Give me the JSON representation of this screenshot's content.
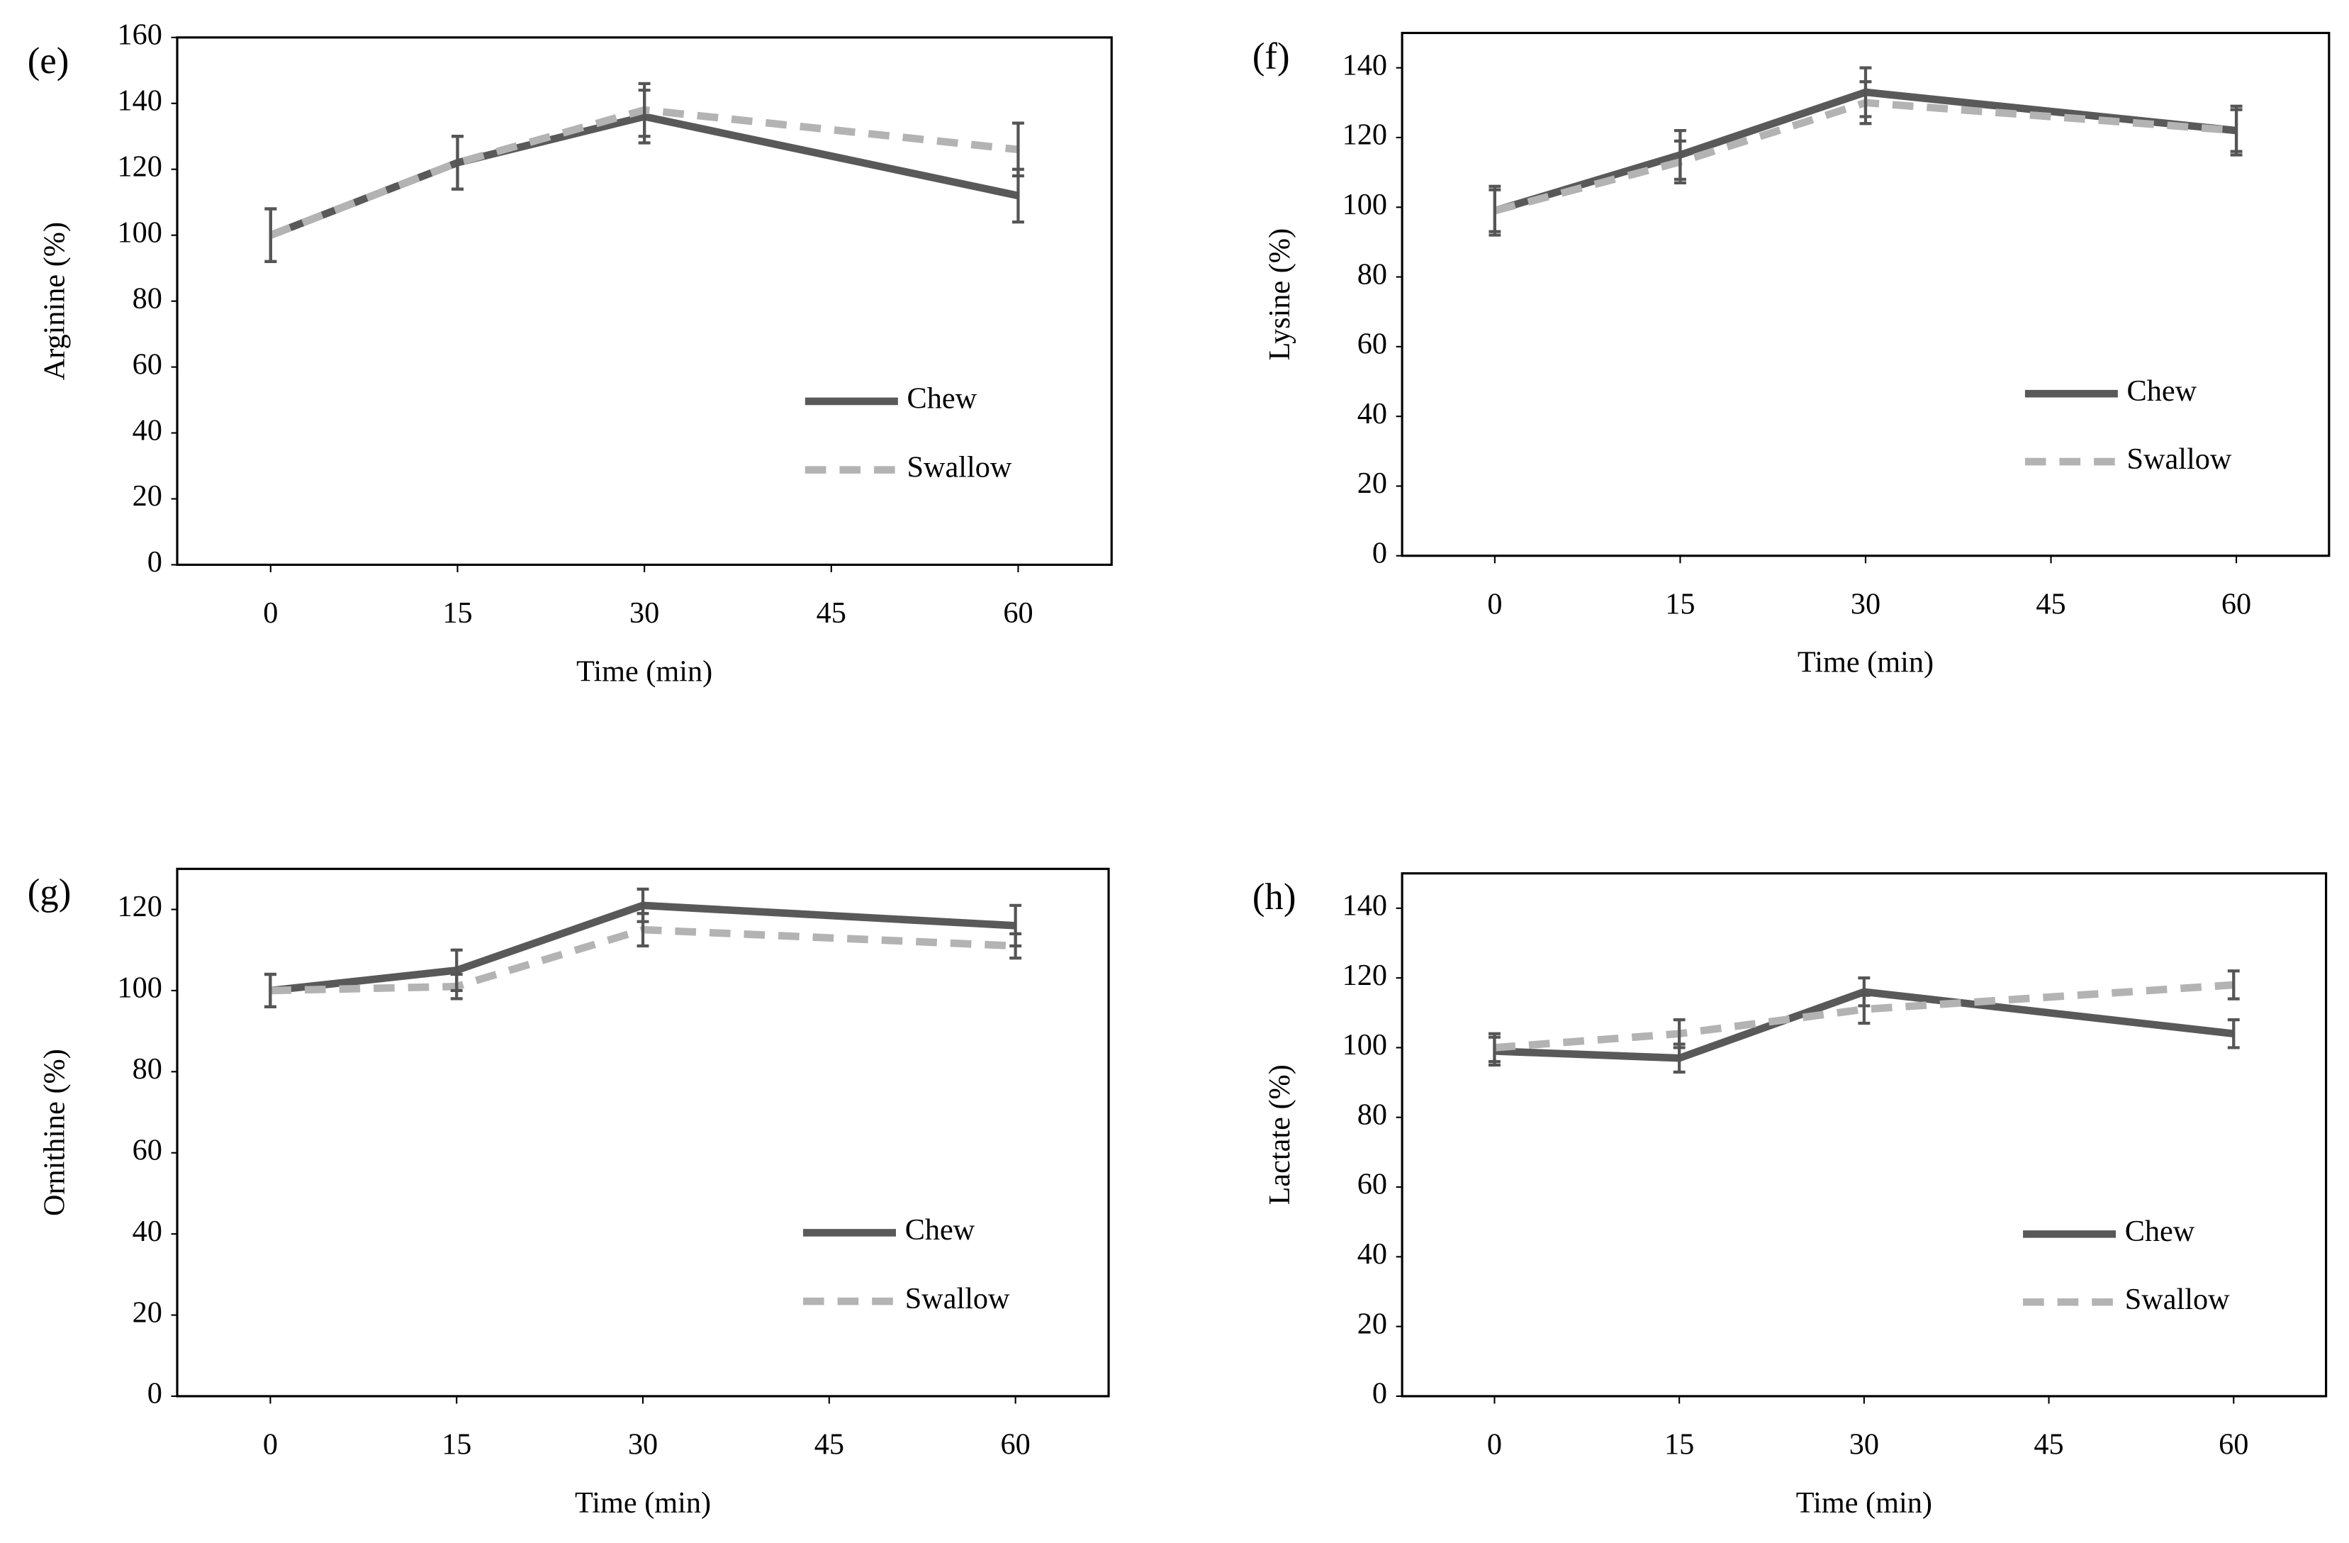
{
  "chart_data": [
    {
      "type": "line",
      "label": "(e)",
      "xlabel": "Time (min)",
      "ylabel": "Arginine (%)",
      "x": [
        0,
        15,
        30,
        60
      ],
      "xlim": [
        -7.5,
        67.5
      ],
      "xticks": [
        0,
        15,
        30,
        45,
        60
      ],
      "ylim": [
        0,
        160
      ],
      "yticks": [
        0,
        20,
        40,
        60,
        80,
        100,
        120,
        140,
        160
      ],
      "series": [
        {
          "name": "Chew",
          "color": "#595959",
          "style": "solid",
          "values": [
            100,
            122,
            136,
            112
          ],
          "errors": [
            8,
            8,
            8,
            8
          ]
        },
        {
          "name": "Swallow",
          "color": "#b3b3b3",
          "style": "dashed",
          "values": [
            100,
            122,
            138,
            126
          ],
          "errors": [
            8,
            8,
            8,
            8
          ]
        }
      ]
    },
    {
      "type": "line",
      "label": "(f)",
      "xlabel": "Time (min)",
      "ylabel": "Lysine (%)",
      "x": [
        0,
        15,
        30,
        60
      ],
      "xlim": [
        -7.5,
        67.5
      ],
      "xticks": [
        0,
        15,
        30,
        45,
        60
      ],
      "ylim": [
        0,
        150
      ],
      "yticks": [
        0,
        20,
        40,
        60,
        80,
        100,
        120,
        140
      ],
      "series": [
        {
          "name": "Chew",
          "color": "#595959",
          "style": "solid",
          "values": [
            99,
            115,
            133,
            122
          ],
          "errors": [
            7,
            7,
            7,
            7
          ]
        },
        {
          "name": "Swallow",
          "color": "#b3b3b3",
          "style": "dashed",
          "values": [
            99,
            113,
            130,
            122
          ],
          "errors": [
            6,
            6,
            6,
            6
          ]
        }
      ]
    },
    {
      "type": "line",
      "label": "(g)",
      "xlabel": "Time (min)",
      "ylabel": "Ornithine (%)",
      "x": [
        0,
        15,
        30,
        60
      ],
      "xlim": [
        -7.5,
        67.5
      ],
      "xticks": [
        0,
        15,
        30,
        45,
        60
      ],
      "ylim": [
        0,
        130
      ],
      "yticks": [
        0,
        20,
        40,
        60,
        80,
        100,
        120
      ],
      "series": [
        {
          "name": "Chew",
          "color": "#595959",
          "style": "solid",
          "values": [
            100,
            105,
            121,
            116
          ],
          "errors": [
            4,
            5,
            4,
            5
          ]
        },
        {
          "name": "Swallow",
          "color": "#b3b3b3",
          "style": "dashed",
          "values": [
            100,
            101,
            115,
            111
          ],
          "errors": [
            4,
            3,
            4,
            3
          ]
        }
      ]
    },
    {
      "type": "line",
      "label": "(h)",
      "xlabel": "Time (min)",
      "ylabel": "Lactate (%)",
      "x": [
        0,
        15,
        30,
        60
      ],
      "xlim": [
        -7.5,
        67.5
      ],
      "xticks": [
        0,
        15,
        30,
        45,
        60
      ],
      "ylim": [
        0,
        150
      ],
      "yticks": [
        0,
        20,
        40,
        60,
        80,
        100,
        120,
        140
      ],
      "series": [
        {
          "name": "Chew",
          "color": "#595959",
          "style": "solid",
          "values": [
            99,
            97,
            116,
            104
          ],
          "errors": [
            4,
            4,
            4,
            4
          ]
        },
        {
          "name": "Swallow",
          "color": "#b3b3b3",
          "style": "dashed",
          "values": [
            100,
            104,
            111,
            118
          ],
          "errors": [
            4,
            4,
            4,
            4
          ]
        }
      ]
    }
  ]
}
